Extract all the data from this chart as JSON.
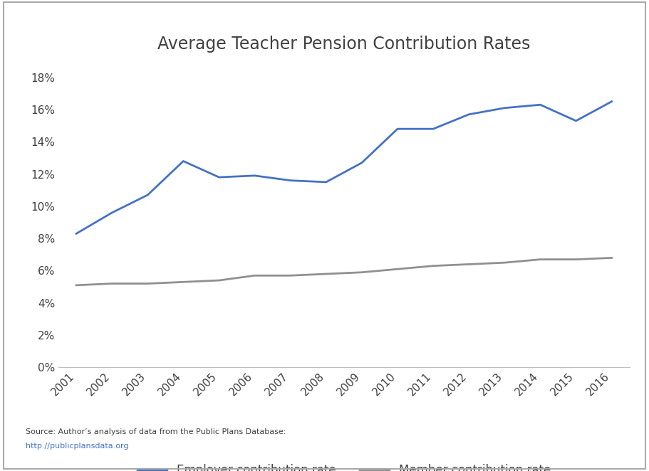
{
  "title": "Average Teacher Pension Contribution Rates",
  "years": [
    2001,
    2002,
    2003,
    2004,
    2005,
    2006,
    2007,
    2008,
    2009,
    2010,
    2011,
    2012,
    2013,
    2014,
    2015,
    2016
  ],
  "employer": [
    0.083,
    0.096,
    0.107,
    0.128,
    0.118,
    0.119,
    0.116,
    0.115,
    0.127,
    0.148,
    0.148,
    0.157,
    0.161,
    0.163,
    0.153,
    0.165
  ],
  "member": [
    0.051,
    0.052,
    0.052,
    0.053,
    0.054,
    0.057,
    0.057,
    0.058,
    0.059,
    0.061,
    0.063,
    0.064,
    0.065,
    0.067,
    0.067,
    0.068
  ],
  "employer_color": "#4472C4",
  "member_color": "#909090",
  "background_color": "#FFFFFF",
  "title_color": "#404040",
  "title_fontsize": 17,
  "tick_color": "#404040",
  "tick_fontsize": 11,
  "legend_label_employer": "Employer contribution rate",
  "legend_label_member": "Member contribution rate",
  "legend_color": "#404040",
  "legend_fontsize": 12,
  "source_text": "Source: Author’s analysis of data from the Public Plans Database:",
  "source_url": "http://publicplansdata.org",
  "source_color": "#404040",
  "url_color": "#4472C4",
  "source_fontsize": 8,
  "ylim": [
    0,
    0.19
  ],
  "yticks": [
    0,
    0.02,
    0.04,
    0.06,
    0.08,
    0.1,
    0.12,
    0.14,
    0.16,
    0.18
  ],
  "line_width": 2.0,
  "border_color": "#AAAAAA",
  "spine_bottom_color": "#C0C0C0"
}
